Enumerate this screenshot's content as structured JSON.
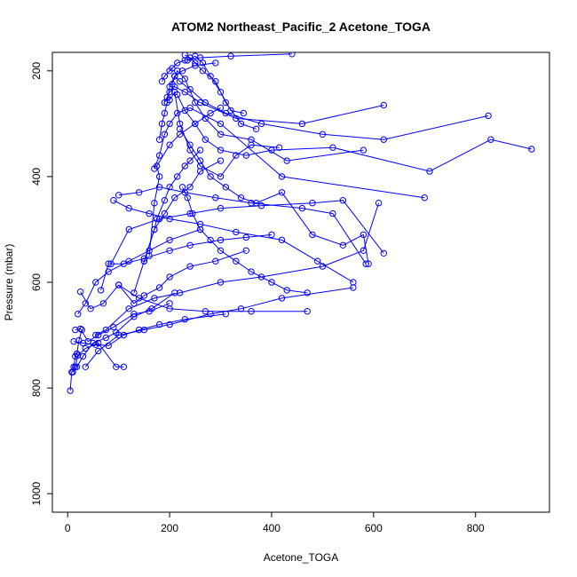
{
  "chart_data": {
    "type": "line",
    "title": "ATOM2 Northeast_Pacific_2 Acetone_TOGA",
    "xlabel": "Acetone_TOGA",
    "ylabel": "Pressure (mbar)",
    "xlim": [
      -30,
      945
    ],
    "ylim": [
      1035,
      165
    ],
    "y_reversed": true,
    "x_ticks": [
      0,
      200,
      400,
      600,
      800
    ],
    "y_ticks": [
      200,
      400,
      600,
      800,
      1000
    ],
    "series_color": "#0000ff",
    "marker": "open-circle",
    "series": [
      {
        "x": [
          5,
          8,
          12,
          15,
          18,
          22,
          28
        ],
        "y": [
          805,
          770,
          760,
          740,
          735,
          710,
          690
        ]
      },
      {
        "x": [
          10,
          15,
          20,
          35,
          60,
          95,
          110
        ],
        "y": [
          770,
          760,
          738,
          725,
          715,
          760,
          760
        ]
      },
      {
        "x": [
          12,
          30,
          55,
          80,
          110,
          140,
          180,
          230,
          310
        ],
        "y": [
          712,
          715,
          718,
          720,
          700,
          690,
          680,
          670,
          660
        ]
      },
      {
        "x": [
          15,
          25,
          40,
          60,
          90,
          130,
          160,
          200
        ],
        "y": [
          690,
          688,
          712,
          700,
          685,
          660,
          655,
          640
        ]
      },
      {
        "x": [
          18,
          30,
          50,
          75,
          95,
          130,
          165,
          210
        ],
        "y": [
          760,
          740,
          715,
          705,
          695,
          665,
          650,
          620
        ]
      },
      {
        "x": [
          20,
          35,
          55,
          80,
          120,
          160,
          200,
          260
        ],
        "y": [
          660,
          640,
          600,
          580,
          560,
          540,
          520,
          500
        ]
      },
      {
        "x": [
          25,
          45,
          70,
          100,
          140,
          200,
          270,
          360,
          470
        ],
        "y": [
          618,
          650,
          640,
          605,
          630,
          650,
          655,
          655,
          655
        ]
      },
      {
        "x": [
          35,
          60,
          100,
          150,
          200,
          280,
          340,
          420,
          560
        ],
        "y": [
          760,
          730,
          700,
          690,
          680,
          660,
          650,
          630,
          610
        ]
      },
      {
        "x": [
          55,
          75,
          120,
          170,
          220,
          300,
          380,
          500,
          580,
          610
        ],
        "y": [
          700,
          690,
          650,
          630,
          620,
          600,
          590,
          570,
          540,
          450
        ]
      },
      {
        "x": [
          65,
          80,
          110,
          150,
          200,
          240,
          300,
          350,
          400
        ],
        "y": [
          615,
          565,
          565,
          555,
          540,
          530,
          520,
          515,
          510
        ]
      },
      {
        "x": [
          85,
          120,
          180,
          240,
          300,
          380,
          480,
          540,
          620
        ],
        "y": [
          565,
          500,
          480,
          470,
          460,
          455,
          450,
          445,
          545
        ]
      },
      {
        "x": [
          100,
          130,
          150,
          180,
          200,
          240,
          290,
          350
        ],
        "y": [
          605,
          640,
          625,
          610,
          590,
          570,
          560,
          540
        ]
      },
      {
        "x": [
          90,
          120,
          160,
          200,
          260,
          330,
          420,
          490,
          560
        ],
        "y": [
          445,
          460,
          470,
          480,
          490,
          505,
          520,
          560,
          600
        ]
      },
      {
        "x": [
          100,
          140,
          180,
          230,
          290,
          360,
          460,
          520,
          585
        ],
        "y": [
          435,
          430,
          420,
          430,
          440,
          450,
          460,
          470,
          565
        ]
      },
      {
        "x": [
          130,
          150,
          170,
          190,
          210,
          240,
          260,
          300
        ],
        "y": [
          620,
          560,
          500,
          470,
          440,
          420,
          390,
          370
        ]
      },
      {
        "x": [
          150,
          170,
          175,
          190,
          200,
          215,
          230,
          240,
          260
        ],
        "y": [
          560,
          500,
          480,
          445,
          420,
          400,
          380,
          370,
          350
        ]
      },
      {
        "x": [
          160,
          170,
          180,
          175,
          200,
          220,
          250,
          280,
          300
        ],
        "y": [
          550,
          450,
          400,
          380,
          340,
          320,
          300,
          280,
          270
        ]
      },
      {
        "x": [
          170,
          180,
          190,
          200,
          215,
          240,
          300,
          420,
          700
        ],
        "y": [
          385,
          360,
          320,
          300,
          280,
          270,
          300,
          400,
          440
        ]
      },
      {
        "x": [
          180,
          185,
          190,
          195,
          200,
          210,
          225,
          250,
          290
        ],
        "y": [
          330,
          300,
          280,
          260,
          230,
          210,
          200,
          190,
          185
        ]
      },
      {
        "x": [
          190,
          195,
          200,
          210,
          230,
          260,
          330,
          460,
          620
        ],
        "y": [
          260,
          250,
          240,
          230,
          240,
          260,
          290,
          300,
          265
        ]
      },
      {
        "x": [
          185,
          190,
          200,
          205,
          215,
          230,
          260,
          320,
          440
        ],
        "y": [
          220,
          210,
          200,
          195,
          185,
          180,
          175,
          172,
          168
        ]
      },
      {
        "x": [
          200,
          210,
          220,
          240,
          260,
          300,
          330,
          360,
          415
        ],
        "y": [
          255,
          240,
          300,
          350,
          380,
          400,
          360,
          340,
          345
        ]
      },
      {
        "x": [
          205,
          215,
          230,
          250,
          270,
          300,
          360,
          430,
          580
        ],
        "y": [
          225,
          200,
          215,
          260,
          290,
          320,
          330,
          370,
          350
        ]
      },
      {
        "x": [
          210,
          220,
          240,
          270,
          310,
          380,
          500,
          620,
          825
        ],
        "y": [
          210,
          220,
          235,
          260,
          280,
          300,
          320,
          330,
          285
        ]
      },
      {
        "x": [
          215,
          230,
          250,
          270,
          300,
          350,
          400,
          520,
          710,
          830,
          910
        ],
        "y": [
          245,
          275,
          300,
          330,
          350,
          360,
          350,
          345,
          390,
          330,
          348
        ]
      },
      {
        "x": [
          220,
          240,
          260,
          280,
          310,
          340,
          370,
          420,
          480,
          540,
          580,
          590
        ],
        "y": [
          310,
          340,
          370,
          400,
          420,
          440,
          450,
          430,
          510,
          530,
          510,
          565
        ]
      },
      {
        "x": [
          225,
          235,
          245,
          260,
          280,
          300,
          330,
          360,
          400,
          430,
          470
        ],
        "y": [
          420,
          440,
          470,
          500,
          520,
          540,
          560,
          580,
          600,
          615,
          620
        ]
      },
      {
        "x": [
          230,
          240,
          250,
          265,
          290,
          310,
          340,
          370
        ],
        "y": [
          170,
          175,
          185,
          200,
          220,
          260,
          300,
          310
        ]
      },
      {
        "x": [
          235,
          250,
          265,
          280,
          300,
          320,
          345
        ],
        "y": [
          180,
          172,
          185,
          210,
          240,
          275,
          280
        ]
      }
    ]
  }
}
